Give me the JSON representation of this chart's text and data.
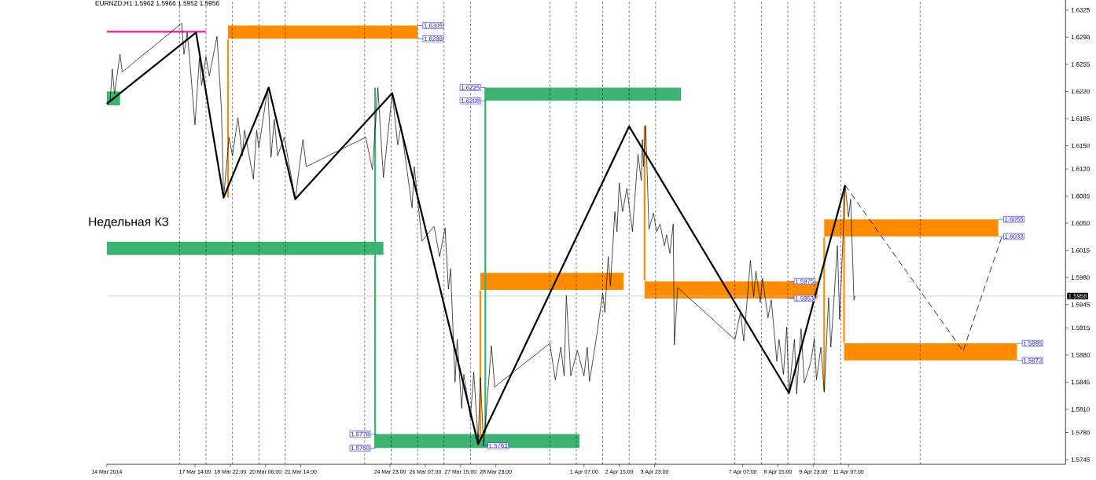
{
  "chart_data": {
    "type": "line",
    "title": "EURNZD,H1  1.5962 1.5966 1.5952 1.5956",
    "xlim": [
      "2014-03-14T06:00",
      "2014-04-19T12:00"
    ],
    "ylim": [
      1.5739,
      1.6338
    ],
    "xticks": [
      {
        "value": "2014-03-14T06:00",
        "label": "14 Mar 2014"
      },
      {
        "value": "2014-03-17T14:00",
        "label": "17 Mar 14:00"
      },
      {
        "value": "2014-03-18T22:00",
        "label": "18 Mar 22:00"
      },
      {
        "value": "2014-03-20T06:00",
        "label": "20 Mar 06:00"
      },
      {
        "value": "2014-03-21T14:00",
        "label": "21 Mar 14:00"
      },
      {
        "value": "2014-03-24T23:00",
        "label": "24 Mar 23:00"
      },
      {
        "value": "2014-03-26T07:00",
        "label": "26 Mar 07:00"
      },
      {
        "value": "2014-03-27T15:00",
        "label": "27 Mar 15:00"
      },
      {
        "value": "2014-03-28T23:00",
        "label": "28 Mar 23:00"
      },
      {
        "value": "2014-04-01T07:00",
        "label": "1 Apr 07:00"
      },
      {
        "value": "2014-04-02T15:00",
        "label": "2 Apr 15:00"
      },
      {
        "value": "2014-04-03T23:00",
        "label": "3 Apr 23:00"
      },
      {
        "value": "2014-04-07T07:00",
        "label": "7 Apr 07:00"
      },
      {
        "value": "2014-04-08T15:00",
        "label": "8 Apr 15:00"
      },
      {
        "value": "2014-04-09T23:00",
        "label": "9 Apr 23:00"
      },
      {
        "value": "2014-04-11T07:00",
        "label": "11 Apr 07:00"
      }
    ],
    "yticks": [
      {
        "value": 1.6325,
        "label": "1.6325"
      },
      {
        "value": 1.629,
        "label": "1.6290"
      },
      {
        "value": 1.6255,
        "label": "1.6255"
      },
      {
        "value": 1.622,
        "label": "1.6220"
      },
      {
        "value": 1.6185,
        "label": "1.6185"
      },
      {
        "value": 1.615,
        "label": "1.6150"
      },
      {
        "value": 1.612,
        "label": "1.6120"
      },
      {
        "value": 1.6085,
        "label": "1.6085"
      },
      {
        "value": 1.605,
        "label": "1.6050"
      },
      {
        "value": 1.6015,
        "label": "1.6015"
      },
      {
        "value": 1.598,
        "label": "1.5980"
      },
      {
        "value": 1.5945,
        "label": "1.5945"
      },
      {
        "value": 1.5915,
        "label": "1.5915"
      },
      {
        "value": 1.588,
        "label": "1.5880"
      },
      {
        "value": 1.5845,
        "label": "1.5845"
      },
      {
        "value": 1.581,
        "label": "1.5810"
      },
      {
        "value": 1.578,
        "label": "1.5780"
      },
      {
        "value": 1.5745,
        "label": "1.5745"
      }
    ],
    "series": [
      {
        "color": "#ff8c00",
        "x": [
          "2014-03-18T20:00",
          "2014-03-26T00:00"
        ],
        "values": [
          null,
          null
        ],
        "lower": [
          1.6288,
          1.6288
        ],
        "upper": [
          1.6305,
          1.6305
        ]
      },
      {
        "color": "#3cb371",
        "x": [
          "2014-03-14T06:00",
          "2014-03-24T17:00"
        ],
        "values": [
          null,
          null
        ],
        "lower": [
          1.6009,
          1.6009
        ],
        "upper": [
          1.6026,
          1.6026
        ]
      },
      {
        "color": "#3cb371",
        "x": [
          "2014-03-28T14:00",
          "2014-04-04T23:00"
        ],
        "values": [
          null,
          null
        ],
        "lower": [
          1.6208,
          1.6208
        ],
        "upper": [
          1.6225,
          1.6225
        ]
      },
      {
        "color": "#3cb371",
        "x": [
          "2014-03-14T06:00",
          "2014-03-14T18:00"
        ],
        "values": [
          null,
          null
        ],
        "lower": [
          1.6202,
          1.6202
        ],
        "upper": [
          1.622,
          1.622
        ]
      },
      {
        "color": "#3cb371",
        "x": [
          "2014-03-24T10:00",
          "2014-04-01T03:00"
        ],
        "values": [
          null,
          null
        ],
        "lower": [
          1.576,
          1.576
        ],
        "upper": [
          1.5778,
          1.5778
        ]
      },
      {
        "color": "#ff8c00",
        "x": [
          "2014-03-28T09:00",
          "2014-04-02T19:00"
        ],
        "values": [
          null,
          null
        ],
        "lower": [
          1.5964,
          1.5964
        ],
        "upper": [
          1.5986,
          1.5986
        ]
      },
      {
        "color": "#ff8c00",
        "x": [
          "2014-04-03T14:00",
          "2014-04-10T03:00"
        ],
        "values": [
          null,
          null
        ],
        "lower": [
          1.5953,
          1.5953
        ],
        "upper": [
          1.5975,
          1.5975
        ]
      },
      {
        "color": "#ff8c00",
        "x": [
          "2014-04-10T09:00",
          "2014-04-16T23:00"
        ],
        "values": [
          null,
          null
        ],
        "lower": [
          1.6033,
          1.6033
        ],
        "upper": [
          1.6055,
          1.6055
        ]
      },
      {
        "color": "#ff8c00",
        "x": [
          "2014-04-11T03:00",
          "2014-04-17T16:00"
        ],
        "values": [
          null,
          null
        ],
        "lower": [
          1.5873,
          1.5873
        ],
        "upper": [
          1.5895,
          1.5895
        ]
      },
      {
        "color": "#ff8c00",
        "x": [
          "2014-03-18T20:00",
          "2014-03-18T20:00"
        ],
        "values": [
          1.6287,
          1.6083
        ]
      },
      {
        "color": "#3cb371",
        "x": [
          "2014-03-28T13:30",
          "2014-03-28T13:30"
        ],
        "values": [
          1.6225,
          1.5779
        ]
      },
      {
        "color": "#3cb371",
        "x": [
          "2014-03-24T09:30",
          "2014-03-24T09:30"
        ],
        "values": [
          1.6225,
          1.576
        ]
      },
      {
        "color": "#ff8c00",
        "x": [
          "2014-03-28T09:00",
          "2014-03-28T09:00"
        ],
        "values": [
          1.5963,
          1.5774
        ]
      },
      {
        "color": "#ff8c00",
        "x": [
          "2014-04-03T14:00",
          "2014-04-03T14:00"
        ],
        "values": [
          1.6176,
          1.5976
        ]
      },
      {
        "color": "#ff8c00",
        "x": [
          "2014-04-10T09:00",
          "2014-04-10T09:00"
        ],
        "values": [
          1.6032,
          1.5834
        ]
      },
      {
        "color": "#ff8c00",
        "x": [
          "2014-04-11T03:00",
          "2014-04-11T03:00"
        ],
        "values": [
          1.6097,
          1.5896
        ]
      },
      {
        "color": "#ff1493",
        "x": [
          "2014-03-14T06:00",
          "2014-03-18T00:00"
        ],
        "values": [
          1.6297,
          1.6297
        ]
      },
      {
        "color": "#000000",
        "x": [
          "2014-03-14T09:00",
          "2014-03-14T11:00",
          "2014-03-14T13:00",
          "2014-03-14T18:00",
          "2014-03-14T20:00",
          "2014-03-17T02:00",
          "2014-03-17T04:00",
          "2014-03-17T07:00",
          "2014-03-17T09:00",
          "2014-03-17T14:00",
          "2014-03-17T18:00",
          "2014-03-17T20:00",
          "2014-03-18T00:00",
          "2014-03-18T03:00",
          "2014-03-18T10:00",
          "2014-03-18T14:00",
          "2014-03-18T16:00",
          "2014-03-18T21:00",
          "2014-03-19T00:00",
          "2014-03-19T05:00",
          "2014-03-19T09:00",
          "2014-03-19T11:00",
          "2014-03-19T19:00",
          "2014-03-19T22:00",
          "2014-03-20T00:00",
          "2014-03-20T08:00",
          "2014-03-20T11:00",
          "2014-03-20T14:00",
          "2014-03-20T17:00",
          "2014-03-20T23:00",
          "2014-03-21T09:00",
          "2014-03-21T16:00",
          "2014-03-21T19:00",
          "2014-03-24T01:00",
          "2014-03-24T07:00",
          "2014-03-24T12:00",
          "2014-03-24T17:00",
          "2014-03-25T01:00",
          "2014-03-25T06:00",
          "2014-03-25T09:00",
          "2014-03-25T19:00",
          "2014-03-25T21:00",
          "2014-03-26T04:00",
          "2014-03-26T15:00",
          "2014-03-26T20:00",
          "2014-03-27T01:00",
          "2014-03-27T04:00",
          "2014-03-27T06:00",
          "2014-03-27T10:00",
          "2014-03-27T12:00",
          "2014-03-27T16:00",
          "2014-03-27T18:00",
          "2014-03-28T00:00",
          "2014-03-28T03:00",
          "2014-03-28T07:00",
          "2014-03-28T09:00",
          "2014-03-28T12:00",
          "2014-03-28T19:00",
          "2014-03-28T22:00",
          "2014-03-31T00:00",
          "2014-03-31T05:00",
          "2014-03-31T10:00",
          "2014-03-31T13:00",
          "2014-03-31T15:00",
          "2014-03-31T19:00",
          "2014-04-01T01:00",
          "2014-04-01T07:00",
          "2014-04-01T10:00",
          "2014-04-01T12:00",
          "2014-04-01T17:00",
          "2014-04-02T00:00",
          "2014-04-02T02:00",
          "2014-04-02T05:00",
          "2014-04-02T07:00",
          "2014-04-02T11:00",
          "2014-04-02T13:00",
          "2014-04-02T15:00",
          "2014-04-02T18:00",
          "2014-04-02T22:00",
          "2014-04-03T03:00",
          "2014-04-03T08:00",
          "2014-04-03T11:00",
          "2014-04-03T12:00",
          "2014-04-03T13:00",
          "2014-04-03T15:00",
          "2014-04-03T18:00",
          "2014-04-03T22:00",
          "2014-04-04T01:00",
          "2014-04-04T04:00",
          "2014-04-04T08:00",
          "2014-04-04T10:00",
          "2014-04-04T13:00",
          "2014-04-04T16:00",
          "2014-04-04T17:00",
          "2014-04-04T20:00",
          "2014-04-07T00:00",
          "2014-04-07T05:00",
          "2014-04-07T08:00",
          "2014-04-07T14:00",
          "2014-04-07T17:00",
          "2014-04-07T19:00",
          "2014-04-07T23:00",
          "2014-04-08T01:00",
          "2014-04-08T06:00",
          "2014-04-08T09:00",
          "2014-04-08T14:00",
          "2014-04-08T16:00",
          "2014-04-08T20:00",
          "2014-04-08T23:00",
          "2014-04-09T01:00",
          "2014-04-09T06:00",
          "2014-04-09T08:00",
          "2014-04-09T12:00",
          "2014-04-09T15:00",
          "2014-04-09T21:00",
          "2014-04-10T00:00",
          "2014-04-10T02:00",
          "2014-04-10T06:00",
          "2014-04-10T09:00",
          "2014-04-10T13:00",
          "2014-04-10T15:00",
          "2014-04-10T21:00",
          "2014-04-10T23:00",
          "2014-04-11T04:00",
          "2014-04-11T07:00",
          "2014-04-11T09:00",
          "2014-04-11T12:00",
          "2014-04-11T13:00"
        ],
        "values": [
          1.6207,
          1.6249,
          1.6217,
          1.6268,
          1.6245,
          1.6308,
          1.6268,
          1.6296,
          1.6265,
          1.6177,
          1.6263,
          1.6228,
          1.6265,
          1.624,
          1.6291,
          1.6198,
          1.6083,
          1.6161,
          1.6137,
          1.6186,
          1.6137,
          1.617,
          1.6107,
          1.617,
          1.6147,
          1.6225,
          1.6135,
          1.6184,
          1.6137,
          1.6161,
          1.6081,
          1.6158,
          1.6123,
          1.6161,
          1.6119,
          1.6225,
          1.6109,
          1.6218,
          1.6151,
          1.6176,
          1.607,
          1.6123,
          1.6027,
          1.6046,
          1.6007,
          1.6044,
          1.5965,
          1.5991,
          1.5845,
          1.59,
          1.5811,
          1.5855,
          1.5799,
          1.5858,
          1.5767,
          1.5851,
          1.5763,
          1.5892,
          1.5839,
          1.5895,
          1.5848,
          1.589,
          1.5853,
          1.5957,
          1.5853,
          1.5886,
          1.5853,
          1.589,
          1.5846,
          1.589,
          1.596,
          1.5935,
          1.6007,
          1.5969,
          1.6065,
          1.6039,
          1.6102,
          1.6065,
          1.6095,
          1.6039,
          1.6139,
          1.6105,
          1.6158,
          1.6123,
          1.6176,
          1.6042,
          1.6063,
          1.6039,
          1.6049,
          1.6021,
          1.6035,
          1.6011,
          1.6049,
          1.5893,
          1.5967,
          1.59,
          1.5935,
          1.5898,
          1.6002,
          1.5955,
          1.5988,
          1.5948,
          1.5979,
          1.5928,
          1.5951,
          1.5872,
          1.59,
          1.5855,
          1.5916,
          1.5831,
          1.59,
          1.583,
          1.5914,
          1.5844,
          1.5872,
          1.5901,
          1.5848,
          1.589,
          1.5832,
          1.5954,
          1.589,
          1.6021,
          1.5926,
          1.6099,
          1.6058,
          1.6081,
          1.5951,
          1.5956
        ]
      },
      {
        "color": "#000000",
        "x": [
          "2014-03-14T06:00",
          "2014-03-17T15:00",
          "2014-03-18T16:00",
          "2014-03-20T09:00",
          "2014-03-21T09:00",
          "2014-03-25T01:00",
          "2014-03-28T07:00",
          "2014-04-03T00:00",
          "2014-04-09T01:00",
          "2014-04-11T04:00"
        ],
        "values": [
          1.6204,
          1.6296,
          1.6083,
          1.6225,
          1.6081,
          1.6218,
          1.5765,
          1.6175,
          1.5831,
          1.6099
        ]
      },
      {
        "color": "#000080",
        "line_style": "dashed",
        "x": [
          "2014-04-11T04:00",
          "2014-04-15T15:00",
          "2014-04-17T02:00"
        ],
        "values": [
          1.6099,
          1.5885,
          1.6032
        ]
      }
    ],
    "ref_lines": [
      {
        "axis": "x",
        "value": "2014-03-17",
        "line_style": "dashed",
        "color": "#000000"
      },
      {
        "axis": "x",
        "value": "2014-03-18",
        "line_style": "dashed",
        "color": "#000000"
      },
      {
        "axis": "x",
        "value": "2014-03-19",
        "line_style": "dashed",
        "color": "#000000"
      },
      {
        "axis": "x",
        "value": "2014-03-20",
        "line_style": "dashed",
        "color": "#000000"
      },
      {
        "axis": "x",
        "value": "2014-03-21",
        "line_style": "dashed",
        "color": "#000000"
      },
      {
        "axis": "x",
        "value": "2014-03-24",
        "line_style": "dashed",
        "color": "#000000"
      },
      {
        "axis": "x",
        "value": "2014-03-25",
        "line_style": "dashed",
        "color": "#000000"
      },
      {
        "axis": "x",
        "value": "2014-03-26",
        "line_style": "dashed",
        "color": "#000000"
      },
      {
        "axis": "x",
        "value": "2014-03-27",
        "line_style": "dashed",
        "color": "#000000"
      },
      {
        "axis": "x",
        "value": "2014-03-28",
        "line_style": "dashed",
        "color": "#000000"
      },
      {
        "axis": "x",
        "value": "2014-03-31",
        "line_style": "dashed",
        "color": "#000000"
      },
      {
        "axis": "x",
        "value": "2014-04-01",
        "line_style": "dashed",
        "color": "#000000"
      },
      {
        "axis": "x",
        "value": "2014-04-02",
        "line_style": "dashed",
        "color": "#000000"
      },
      {
        "axis": "x",
        "value": "2014-04-03",
        "line_style": "dashed",
        "color": "#000000"
      },
      {
        "axis": "x",
        "value": "2014-04-04",
        "line_style": "dashed",
        "color": "#000000"
      },
      {
        "axis": "x",
        "value": "2014-04-07",
        "line_style": "dashed",
        "color": "#000000"
      },
      {
        "axis": "x",
        "value": "2014-04-08",
        "line_style": "dashed",
        "color": "#000000"
      },
      {
        "axis": "x",
        "value": "2014-04-09",
        "line_style": "dashed",
        "color": "#000000"
      },
      {
        "axis": "x",
        "value": "2014-04-10",
        "line_style": "dashed",
        "color": "#000000"
      },
      {
        "axis": "x",
        "value": "2014-04-11",
        "line_style": "dashed",
        "color": "#000000"
      },
      {
        "axis": "x",
        "value": "2014-04-14",
        "line_style": "dashed",
        "color": "#000000"
      },
      {
        "axis": "y",
        "value": 1.5956,
        "label": "1.5956",
        "color": "#c0c0c0"
      }
    ],
    "annotations": [
      "Недельная КЗ",
      {
        "text": "1.6305",
        "x": "2014-03-26T00:00",
        "y": 1.6305
      },
      {
        "text": "1.6288",
        "x": "2014-03-26T00:00",
        "y": 1.6288
      },
      {
        "text": "1.6225",
        "x": "2014-03-28T14:00",
        "y": 1.6225
      },
      {
        "text": "1.6208",
        "x": "2014-03-28T14:00",
        "y": 1.6208
      },
      {
        "text": "1.5778",
        "x": "2014-03-24T10:00",
        "y": 1.5778
      },
      {
        "text": "1.5760",
        "x": "2014-03-24T10:00",
        "y": 1.576
      },
      {
        "text": "1.5763",
        "x": "2014-03-28T11:00",
        "y": 1.5763
      },
      {
        "text": "1.5975",
        "x": "2014-04-09T01:00",
        "y": 1.5975
      },
      {
        "text": "1.5953",
        "x": "2014-04-09T01:00",
        "y": 1.5953
      },
      {
        "text": "1.6055",
        "x": "2014-04-16T23:00",
        "y": 1.6055
      },
      {
        "text": "1.6033",
        "x": "2014-04-16T23:00",
        "y": 1.6033
      },
      {
        "text": "1.5895",
        "x": "2014-04-17T16:00",
        "y": 1.5895
      },
      {
        "text": "1.5873",
        "x": "2014-04-17T16:00",
        "y": 1.5873
      }
    ]
  }
}
